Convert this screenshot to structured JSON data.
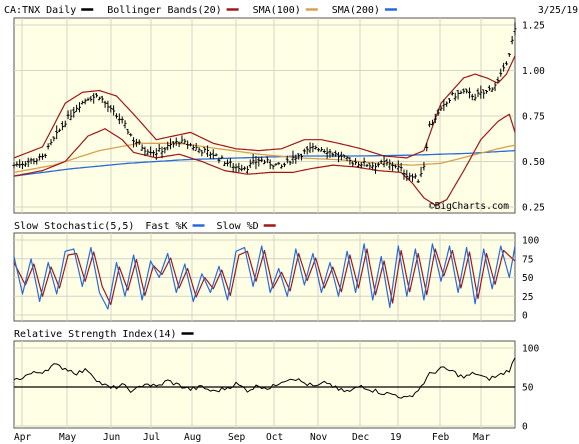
{
  "colors": {
    "background": "#ffffff",
    "panel_fill": "#ffffe6",
    "grid": "#d4d4c8",
    "border": "#555555",
    "price": "#000000",
    "bollinger": "#a01818",
    "sma100": "#d8a050",
    "sma200": "#2a6ad8",
    "fast_k": "#2a6ad8",
    "slow_d": "#a01818",
    "rsi": "#000000"
  },
  "chart_data": [
    {
      "type": "line",
      "panel": "price",
      "legend": [
        {
          "label": "CA:TNX Daily",
          "swatch": "price"
        },
        {
          "label": "Bollinger Bands(20)",
          "swatch": "bollinger"
        },
        {
          "label": "SMA(100)",
          "swatch": "sma100"
        },
        {
          "label": "SMA(200)",
          "swatch": "sma200"
        }
      ],
      "date_label": "3/25/19",
      "watermark": "©BigCharts.com",
      "y_ticks": [
        0.25,
        0.5,
        0.75,
        1.0,
        1.25
      ],
      "y_tick_labels": [
        "0.25",
        "0.50",
        "0.75",
        "1.00",
        "1.25"
      ],
      "ylim": [
        0.25,
        1.25
      ],
      "grid": true,
      "x_months": [
        "Apr",
        "May",
        "Jun",
        "Jul",
        "Aug",
        "Sep",
        "Oct",
        "Nov",
        "Dec",
        "19",
        "Feb",
        "Mar"
      ],
      "price_anchors": [
        [
          0,
          0.48
        ],
        [
          5,
          0.5
        ],
        [
          10,
          0.52
        ],
        [
          14,
          0.62
        ],
        [
          18,
          0.72
        ],
        [
          22,
          0.8
        ],
        [
          26,
          0.85
        ],
        [
          30,
          0.86
        ],
        [
          34,
          0.78
        ],
        [
          38,
          0.72
        ],
        [
          42,
          0.62
        ],
        [
          46,
          0.57
        ],
        [
          50,
          0.55
        ],
        [
          54,
          0.58
        ],
        [
          58,
          0.61
        ],
        [
          62,
          0.59
        ],
        [
          66,
          0.56
        ],
        [
          70,
          0.54
        ],
        [
          74,
          0.5
        ],
        [
          78,
          0.47
        ],
        [
          82,
          0.47
        ],
        [
          86,
          0.51
        ],
        [
          90,
          0.49
        ],
        [
          94,
          0.47
        ],
        [
          98,
          0.52
        ],
        [
          102,
          0.55
        ],
        [
          106,
          0.58
        ],
        [
          110,
          0.56
        ],
        [
          114,
          0.53
        ],
        [
          118,
          0.5
        ],
        [
          122,
          0.49
        ],
        [
          126,
          0.48
        ],
        [
          130,
          0.49
        ],
        [
          134,
          0.48
        ],
        [
          138,
          0.43
        ],
        [
          142,
          0.4
        ],
        [
          144,
          0.48
        ],
        [
          146,
          0.7
        ],
        [
          150,
          0.78
        ],
        [
          154,
          0.86
        ],
        [
          158,
          0.88
        ],
        [
          162,
          0.86
        ],
        [
          166,
          0.88
        ],
        [
          170,
          0.94
        ],
        [
          172,
          1.0
        ],
        [
          174,
          1.1
        ],
        [
          176,
          1.22
        ]
      ],
      "bb_upper_anchors": [
        [
          0,
          0.52
        ],
        [
          10,
          0.58
        ],
        [
          18,
          0.82
        ],
        [
          24,
          0.88
        ],
        [
          30,
          0.89
        ],
        [
          36,
          0.86
        ],
        [
          42,
          0.76
        ],
        [
          50,
          0.62
        ],
        [
          56,
          0.64
        ],
        [
          62,
          0.66
        ],
        [
          70,
          0.6
        ],
        [
          78,
          0.57
        ],
        [
          86,
          0.56
        ],
        [
          94,
          0.57
        ],
        [
          102,
          0.62
        ],
        [
          108,
          0.62
        ],
        [
          114,
          0.6
        ],
        [
          122,
          0.57
        ],
        [
          130,
          0.53
        ],
        [
          138,
          0.52
        ],
        [
          144,
          0.56
        ],
        [
          150,
          0.82
        ],
        [
          158,
          0.96
        ],
        [
          162,
          0.98
        ],
        [
          166,
          0.96
        ],
        [
          170,
          0.93
        ],
        [
          173,
          0.98
        ],
        [
          176,
          1.08
        ]
      ],
      "bb_lower_anchors": [
        [
          0,
          0.42
        ],
        [
          10,
          0.45
        ],
        [
          18,
          0.5
        ],
        [
          26,
          0.64
        ],
        [
          32,
          0.68
        ],
        [
          38,
          0.62
        ],
        [
          42,
          0.55
        ],
        [
          50,
          0.52
        ],
        [
          58,
          0.54
        ],
        [
          66,
          0.5
        ],
        [
          74,
          0.45
        ],
        [
          82,
          0.43
        ],
        [
          90,
          0.44
        ],
        [
          98,
          0.44
        ],
        [
          104,
          0.46
        ],
        [
          112,
          0.48
        ],
        [
          120,
          0.47
        ],
        [
          128,
          0.45
        ],
        [
          136,
          0.44
        ],
        [
          140,
          0.38
        ],
        [
          144,
          0.3
        ],
        [
          148,
          0.26
        ],
        [
          152,
          0.29
        ],
        [
          158,
          0.45
        ],
        [
          164,
          0.62
        ],
        [
          170,
          0.72
        ],
        [
          174,
          0.76
        ],
        [
          176,
          0.66
        ]
      ],
      "sma100_anchors": [
        [
          0,
          0.44
        ],
        [
          14,
          0.48
        ],
        [
          30,
          0.56
        ],
        [
          44,
          0.6
        ],
        [
          58,
          0.6
        ],
        [
          72,
          0.57
        ],
        [
          86,
          0.54
        ],
        [
          100,
          0.52
        ],
        [
          114,
          0.51
        ],
        [
          128,
          0.49
        ],
        [
          140,
          0.48
        ],
        [
          150,
          0.49
        ],
        [
          160,
          0.53
        ],
        [
          170,
          0.57
        ],
        [
          176,
          0.59
        ]
      ],
      "sma200_anchors": [
        [
          0,
          0.42
        ],
        [
          20,
          0.46
        ],
        [
          40,
          0.49
        ],
        [
          60,
          0.51
        ],
        [
          80,
          0.52
        ],
        [
          100,
          0.53
        ],
        [
          120,
          0.53
        ],
        [
          140,
          0.535
        ],
        [
          160,
          0.545
        ],
        [
          176,
          0.56
        ]
      ]
    },
    {
      "type": "line",
      "panel": "stochastic",
      "legend": [
        {
          "label": "Slow Stochastic(5,5)",
          "swatch": null
        },
        {
          "label": "Fast %K",
          "swatch": "fast_k"
        },
        {
          "label": "Slow %D",
          "swatch": "slow_d"
        }
      ],
      "y_ticks": [
        0,
        25,
        50,
        75,
        100
      ],
      "y_tick_labels": [
        "0",
        "25",
        "50",
        "75",
        "100"
      ],
      "ylim": [
        0,
        100
      ],
      "grid": true,
      "fast_k_anchors": [
        [
          0,
          78
        ],
        [
          3,
          28
        ],
        [
          6,
          75
        ],
        [
          9,
          18
        ],
        [
          12,
          70
        ],
        [
          15,
          28
        ],
        [
          18,
          85
        ],
        [
          21,
          88
        ],
        [
          24,
          38
        ],
        [
          27,
          90
        ],
        [
          30,
          30
        ],
        [
          33,
          8
        ],
        [
          36,
          70
        ],
        [
          39,
          25
        ],
        [
          42,
          80
        ],
        [
          45,
          20
        ],
        [
          48,
          72
        ],
        [
          51,
          50
        ],
        [
          54,
          82
        ],
        [
          57,
          30
        ],
        [
          60,
          68
        ],
        [
          63,
          18
        ],
        [
          66,
          55
        ],
        [
          69,
          30
        ],
        [
          72,
          65
        ],
        [
          75,
          20
        ],
        [
          78,
          85
        ],
        [
          81,
          90
        ],
        [
          84,
          38
        ],
        [
          87,
          92
        ],
        [
          90,
          30
        ],
        [
          93,
          62
        ],
        [
          96,
          25
        ],
        [
          99,
          88
        ],
        [
          102,
          40
        ],
        [
          105,
          82
        ],
        [
          108,
          30
        ],
        [
          111,
          70
        ],
        [
          114,
          25
        ],
        [
          117,
          85
        ],
        [
          120,
          30
        ],
        [
          123,
          95
        ],
        [
          126,
          20
        ],
        [
          129,
          78
        ],
        [
          132,
          10
        ],
        [
          135,
          92
        ],
        [
          138,
          25
        ],
        [
          141,
          88
        ],
        [
          144,
          20
        ],
        [
          147,
          95
        ],
        [
          150,
          45
        ],
        [
          153,
          92
        ],
        [
          156,
          30
        ],
        [
          159,
          90
        ],
        [
          162,
          15
        ],
        [
          165,
          88
        ],
        [
          168,
          35
        ],
        [
          171,
          92
        ],
        [
          174,
          50
        ],
        [
          176,
          92
        ]
      ],
      "slow_d_anchors": [
        [
          0,
          70
        ],
        [
          4,
          40
        ],
        [
          7,
          68
        ],
        [
          10,
          25
        ],
        [
          13,
          64
        ],
        [
          16,
          36
        ],
        [
          19,
          80
        ],
        [
          22,
          82
        ],
        [
          25,
          45
        ],
        [
          28,
          84
        ],
        [
          31,
          38
        ],
        [
          34,
          14
        ],
        [
          37,
          64
        ],
        [
          40,
          33
        ],
        [
          43,
          74
        ],
        [
          46,
          26
        ],
        [
          49,
          66
        ],
        [
          52,
          54
        ],
        [
          55,
          76
        ],
        [
          58,
          36
        ],
        [
          61,
          62
        ],
        [
          64,
          24
        ],
        [
          67,
          50
        ],
        [
          70,
          35
        ],
        [
          73,
          60
        ],
        [
          76,
          26
        ],
        [
          79,
          80
        ],
        [
          82,
          85
        ],
        [
          85,
          45
        ],
        [
          88,
          86
        ],
        [
          91,
          36
        ],
        [
          94,
          57
        ],
        [
          97,
          32
        ],
        [
          100,
          82
        ],
        [
          103,
          46
        ],
        [
          106,
          76
        ],
        [
          109,
          36
        ],
        [
          112,
          64
        ],
        [
          115,
          31
        ],
        [
          118,
          80
        ],
        [
          121,
          36
        ],
        [
          124,
          88
        ],
        [
          127,
          27
        ],
        [
          130,
          72
        ],
        [
          133,
          16
        ],
        [
          136,
          86
        ],
        [
          139,
          31
        ],
        [
          142,
          82
        ],
        [
          145,
          27
        ],
        [
          148,
          88
        ],
        [
          151,
          52
        ],
        [
          154,
          86
        ],
        [
          157,
          36
        ],
        [
          160,
          84
        ],
        [
          163,
          22
        ],
        [
          166,
          82
        ],
        [
          169,
          41
        ],
        [
          172,
          86
        ],
        [
          176,
          72
        ]
      ]
    },
    {
      "type": "line",
      "panel": "rsi",
      "legend": [
        {
          "label": "Relative Strength Index(14)",
          "swatch": "rsi"
        }
      ],
      "y_ticks": [
        0,
        50,
        100
      ],
      "y_tick_labels": [
        "0",
        "50",
        "100"
      ],
      "ylim": [
        0,
        100
      ],
      "baseline": 50,
      "grid": true,
      "rsi_anchors": [
        [
          0,
          58
        ],
        [
          5,
          66
        ],
        [
          10,
          70
        ],
        [
          14,
          78
        ],
        [
          18,
          74
        ],
        [
          22,
          68
        ],
        [
          26,
          72
        ],
        [
          30,
          56
        ],
        [
          34,
          48
        ],
        [
          38,
          52
        ],
        [
          42,
          44
        ],
        [
          46,
          55
        ],
        [
          50,
          50
        ],
        [
          54,
          58
        ],
        [
          58,
          52
        ],
        [
          62,
          47
        ],
        [
          66,
          50
        ],
        [
          70,
          44
        ],
        [
          74,
          48
        ],
        [
          78,
          54
        ],
        [
          82,
          46
        ],
        [
          86,
          52
        ],
        [
          90,
          48
        ],
        [
          94,
          58
        ],
        [
          98,
          62
        ],
        [
          102,
          55
        ],
        [
          106,
          50
        ],
        [
          110,
          56
        ],
        [
          114,
          46
        ],
        [
          118,
          44
        ],
        [
          122,
          52
        ],
        [
          126,
          46
        ],
        [
          130,
          42
        ],
        [
          134,
          40
        ],
        [
          138,
          35
        ],
        [
          142,
          46
        ],
        [
          146,
          66
        ],
        [
          150,
          74
        ],
        [
          154,
          70
        ],
        [
          158,
          62
        ],
        [
          162,
          68
        ],
        [
          166,
          60
        ],
        [
          170,
          64
        ],
        [
          174,
          72
        ],
        [
          176,
          86
        ]
      ]
    }
  ]
}
